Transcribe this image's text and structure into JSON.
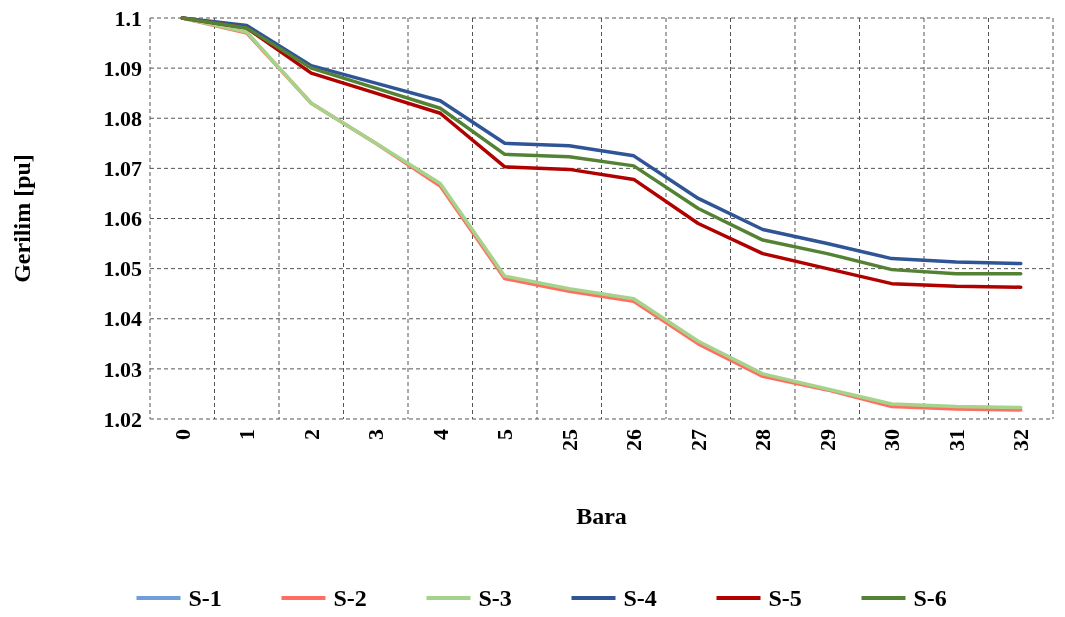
{
  "chart_data": {
    "type": "line",
    "xlabel": "Bara",
    "ylabel": "Gerilim [pu]",
    "categories": [
      "0",
      "1",
      "2",
      "3",
      "4",
      "5",
      "25",
      "26",
      "27",
      "28",
      "29",
      "30",
      "31",
      "32"
    ],
    "ylim": [
      1.02,
      1.1
    ],
    "yticks": [
      1.02,
      1.03,
      1.04,
      1.05,
      1.06,
      1.07,
      1.08,
      1.09,
      1.1
    ],
    "grid": true,
    "legend": "bottom",
    "line_style": "solid",
    "series": [
      {
        "name": "S-1",
        "color": "#6f9fd8",
        "values": [
          null,
          null,
          null,
          null,
          null,
          null,
          null,
          null,
          null,
          null,
          null,
          null,
          null,
          null
        ]
      },
      {
        "name": "S-2",
        "color": "#ff6f61",
        "values": [
          1.1,
          1.097,
          1.083,
          1.075,
          1.0665,
          1.048,
          1.0455,
          1.0435,
          1.035,
          1.0285,
          1.0258,
          1.0225,
          1.022,
          1.0218
        ]
      },
      {
        "name": "S-3",
        "color": "#a6d38c",
        "values": [
          1.1,
          1.0972,
          1.083,
          1.075,
          1.067,
          1.0485,
          1.046,
          1.044,
          1.0355,
          1.029,
          1.026,
          1.023,
          1.0225,
          1.0223
        ]
      },
      {
        "name": "S-4",
        "color": "#2f5597",
        "values": [
          1.1,
          1.0985,
          1.0905,
          1.087,
          1.0835,
          1.075,
          1.0745,
          1.0725,
          1.064,
          1.0578,
          1.055,
          1.052,
          1.0513,
          1.051
        ]
      },
      {
        "name": "S-5",
        "color": "#b00000",
        "values": [
          1.1,
          1.098,
          1.089,
          1.085,
          1.081,
          1.0703,
          1.0698,
          1.0678,
          1.059,
          1.053,
          1.05,
          1.047,
          1.0465,
          1.0463
        ]
      },
      {
        "name": "S-6",
        "color": "#548235",
        "values": [
          1.1,
          1.098,
          1.09,
          1.086,
          1.082,
          1.0728,
          1.0723,
          1.0705,
          1.062,
          1.0557,
          1.053,
          1.0498,
          1.049,
          1.049
        ]
      }
    ]
  }
}
